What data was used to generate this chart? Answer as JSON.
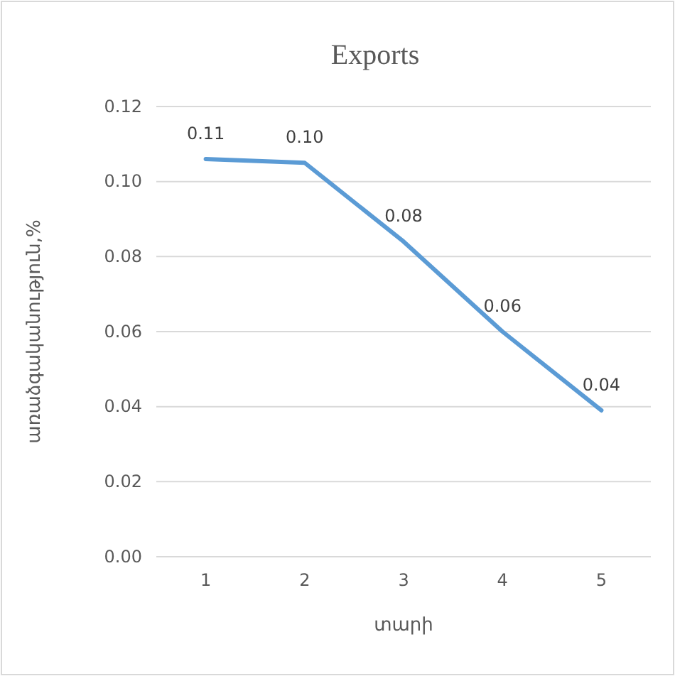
{
  "chart_data": {
    "type": "line",
    "title": "Exports",
    "xlabel": "տարի",
    "ylabel": "առաձգականություն,%",
    "categories": [
      "1",
      "2",
      "3",
      "4",
      "5"
    ],
    "series": [
      {
        "color": "#5b9bd5",
        "values": [
          0.106,
          0.105,
          0.084,
          0.06,
          0.039
        ],
        "value_labels": [
          "0.11",
          "0.10",
          "0.08",
          "0.06",
          "0.04"
        ]
      }
    ],
    "ylim": [
      0,
      0.12
    ],
    "yticks": [
      {
        "value": 0,
        "label": "0.00"
      },
      {
        "value": 0.02,
        "label": "0.02"
      },
      {
        "value": 0.04,
        "label": "0.04"
      },
      {
        "value": 0.06,
        "label": "0.06"
      },
      {
        "value": 0.08,
        "label": "0.08"
      },
      {
        "value": 0.1,
        "label": "0.10"
      },
      {
        "value": 0.12,
        "label": "0.12"
      }
    ],
    "grid": "y",
    "marker": "none",
    "line_style": "solid"
  }
}
